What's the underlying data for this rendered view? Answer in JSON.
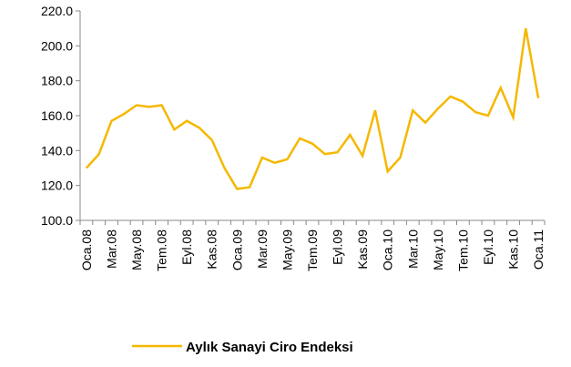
{
  "chart_data": {
    "type": "line",
    "categories": [
      "Oca.08",
      null,
      "Mar.08",
      null,
      "May.08",
      null,
      "Tem.08",
      null,
      "Eyl.08",
      null,
      "Kas.08",
      null,
      "Oca.09",
      null,
      "Mar.09",
      null,
      "May.09",
      null,
      "Tem.09",
      null,
      "Eyl.09",
      null,
      "Kas.09",
      null,
      "Oca.10",
      null,
      "Mar.10",
      null,
      "May.10",
      null,
      "Tem.10",
      null,
      "Eyl.10",
      null,
      "Kas.10",
      null,
      "Oca.11"
    ],
    "series": [
      {
        "name": "Aylık Sanayi Ciro Endeksi",
        "color": "#f5b800",
        "values": [
          130,
          138,
          157,
          161,
          166,
          165,
          166,
          152,
          157,
          153,
          146,
          130,
          118,
          119,
          136,
          133,
          135,
          147,
          144,
          138,
          139,
          149,
          137,
          163,
          128,
          136,
          163,
          156,
          164,
          171,
          168,
          162,
          160,
          176,
          159,
          210,
          170
        ]
      }
    ],
    "ylim": [
      100,
      220
    ],
    "yticks": [
      {
        "value": 100,
        "label": "100.0"
      },
      {
        "value": 120,
        "label": "120.0"
      },
      {
        "value": 140,
        "label": "140.0"
      },
      {
        "value": 160,
        "label": "160.0"
      },
      {
        "value": 180,
        "label": "180.0"
      },
      {
        "value": 200,
        "label": "200.0"
      },
      {
        "value": 220,
        "label": "220.0"
      }
    ],
    "legend": "bottom"
  }
}
